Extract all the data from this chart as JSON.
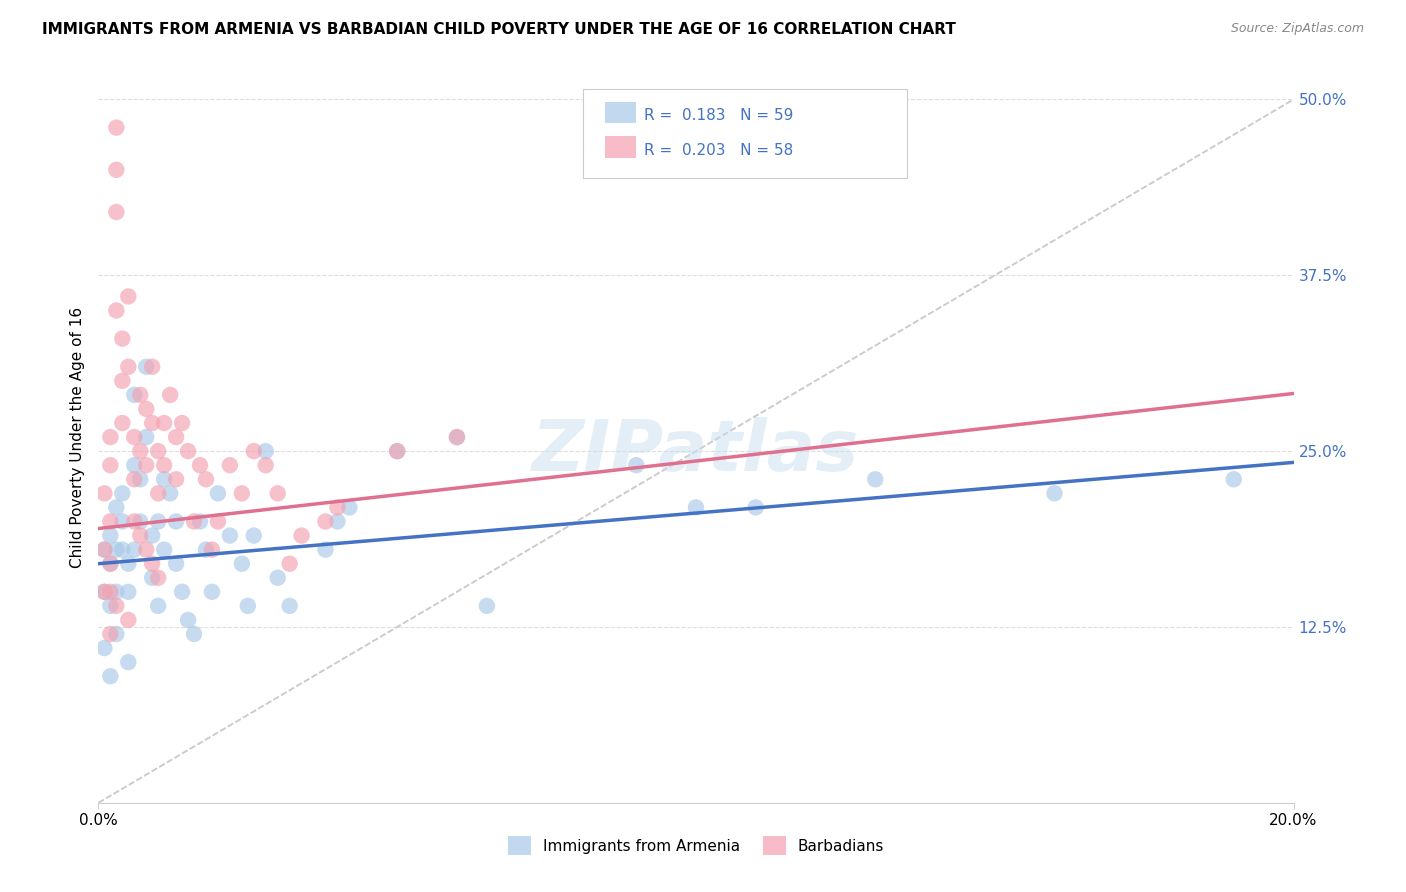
{
  "title": "IMMIGRANTS FROM ARMENIA VS BARBADIAN CHILD POVERTY UNDER THE AGE OF 16 CORRELATION CHART",
  "source": "Source: ZipAtlas.com",
  "ylabel": "Child Poverty Under the Age of 16",
  "legend_label1": "Immigrants from Armenia",
  "legend_label2": "Barbadians",
  "r1": "0.183",
  "n1": "59",
  "r2": "0.203",
  "n2": "58",
  "color_blue": "#a8c8e8",
  "color_blue_line": "#4472c4",
  "color_pink": "#f4a0b0",
  "color_pink_line": "#e07090",
  "color_diag": "#cccccc",
  "xmin": 0.0,
  "xmax": 0.2,
  "ymin": 0.0,
  "ymax": 0.52,
  "blue_intercept": 0.17,
  "blue_slope": 0.36,
  "pink_intercept": 0.195,
  "pink_slope": 0.48,
  "blue_points_x": [
    0.001,
    0.001,
    0.001,
    0.002,
    0.002,
    0.002,
    0.002,
    0.003,
    0.003,
    0.003,
    0.003,
    0.004,
    0.004,
    0.004,
    0.005,
    0.005,
    0.005,
    0.006,
    0.006,
    0.006,
    0.007,
    0.007,
    0.008,
    0.008,
    0.009,
    0.009,
    0.01,
    0.01,
    0.011,
    0.011,
    0.012,
    0.013,
    0.013,
    0.014,
    0.015,
    0.016,
    0.017,
    0.018,
    0.019,
    0.02,
    0.022,
    0.024,
    0.025,
    0.026,
    0.028,
    0.03,
    0.032,
    0.038,
    0.04,
    0.042,
    0.05,
    0.06,
    0.065,
    0.09,
    0.1,
    0.11,
    0.13,
    0.16,
    0.19
  ],
  "blue_points_y": [
    0.18,
    0.15,
    0.11,
    0.19,
    0.17,
    0.14,
    0.09,
    0.21,
    0.18,
    0.15,
    0.12,
    0.2,
    0.22,
    0.18,
    0.17,
    0.15,
    0.1,
    0.29,
    0.24,
    0.18,
    0.23,
    0.2,
    0.31,
    0.26,
    0.19,
    0.16,
    0.2,
    0.14,
    0.23,
    0.18,
    0.22,
    0.2,
    0.17,
    0.15,
    0.13,
    0.12,
    0.2,
    0.18,
    0.15,
    0.22,
    0.19,
    0.17,
    0.14,
    0.19,
    0.25,
    0.16,
    0.14,
    0.18,
    0.2,
    0.21,
    0.25,
    0.26,
    0.14,
    0.24,
    0.21,
    0.21,
    0.23,
    0.22,
    0.23
  ],
  "pink_points_x": [
    0.001,
    0.001,
    0.001,
    0.002,
    0.002,
    0.002,
    0.002,
    0.003,
    0.003,
    0.003,
    0.004,
    0.004,
    0.005,
    0.005,
    0.006,
    0.006,
    0.007,
    0.007,
    0.008,
    0.008,
    0.009,
    0.009,
    0.01,
    0.01,
    0.011,
    0.011,
    0.012,
    0.013,
    0.013,
    0.014,
    0.015,
    0.016,
    0.017,
    0.018,
    0.019,
    0.02,
    0.022,
    0.024,
    0.026,
    0.028,
    0.03,
    0.032,
    0.034,
    0.038,
    0.04,
    0.05,
    0.06,
    0.003,
    0.004,
    0.002,
    0.002,
    0.003,
    0.005,
    0.006,
    0.007,
    0.008,
    0.009,
    0.01
  ],
  "pink_points_y": [
    0.22,
    0.18,
    0.15,
    0.24,
    0.2,
    0.17,
    0.12,
    0.48,
    0.45,
    0.42,
    0.33,
    0.3,
    0.36,
    0.31,
    0.26,
    0.23,
    0.29,
    0.25,
    0.28,
    0.24,
    0.31,
    0.27,
    0.25,
    0.22,
    0.27,
    0.24,
    0.29,
    0.26,
    0.23,
    0.27,
    0.25,
    0.2,
    0.24,
    0.23,
    0.18,
    0.2,
    0.24,
    0.22,
    0.25,
    0.24,
    0.22,
    0.17,
    0.19,
    0.2,
    0.21,
    0.25,
    0.26,
    0.35,
    0.27,
    0.26,
    0.15,
    0.14,
    0.13,
    0.2,
    0.19,
    0.18,
    0.17,
    0.16
  ],
  "background_color": "#ffffff",
  "grid_color": "#dddddd",
  "watermark": "ZIPatlas",
  "watermark_color": "#c8dff0"
}
